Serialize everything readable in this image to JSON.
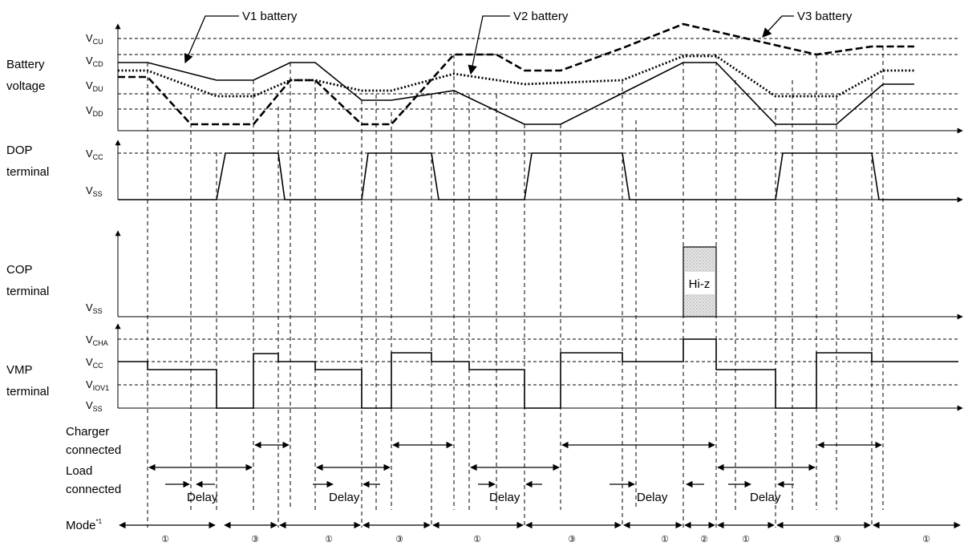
{
  "callouts": {
    "v1": "V1 battery",
    "v2": "V2 battery",
    "v3": "V3 battery"
  },
  "sections": {
    "battery": [
      "Battery",
      "voltage"
    ],
    "dop": [
      "DOP",
      "terminal"
    ],
    "cop": [
      "COP",
      "terminal"
    ],
    "vmp": [
      "VMP",
      "terminal"
    ],
    "charger": [
      "Charger",
      "connected"
    ],
    "load": [
      "Load",
      "connected"
    ],
    "mode_main": "Mode",
    "mode_sup": "*1"
  },
  "levels": {
    "vcu": {
      "main": "V",
      "sub": "CU"
    },
    "vcd": {
      "main": "V",
      "sub": "CD"
    },
    "vdu": {
      "main": "V",
      "sub": "DU"
    },
    "vdd": {
      "main": "V",
      "sub": "DD"
    },
    "dop_vcc": {
      "main": "V",
      "sub": "CC"
    },
    "dop_vss": {
      "main": "V",
      "sub": "SS"
    },
    "cop_vss": {
      "main": "V",
      "sub": "SS"
    },
    "vcha": {
      "main": "V",
      "sub": "CHA"
    },
    "vmp_vcc": {
      "main": "V",
      "sub": "CC"
    },
    "viov1": {
      "main": "V",
      "sub": "IOV1"
    },
    "vmp_vss": {
      "main": "V",
      "sub": "SS"
    }
  },
  "hiz_label": "Hi-z",
  "delay_label": "Delay",
  "modes": [
    "①",
    "③",
    "①",
    "③",
    "①",
    "③",
    "①",
    "②",
    "①",
    "③",
    "①"
  ],
  "colors": {
    "line": "#000000",
    "hiz_fill": "#d9d9d9"
  }
}
